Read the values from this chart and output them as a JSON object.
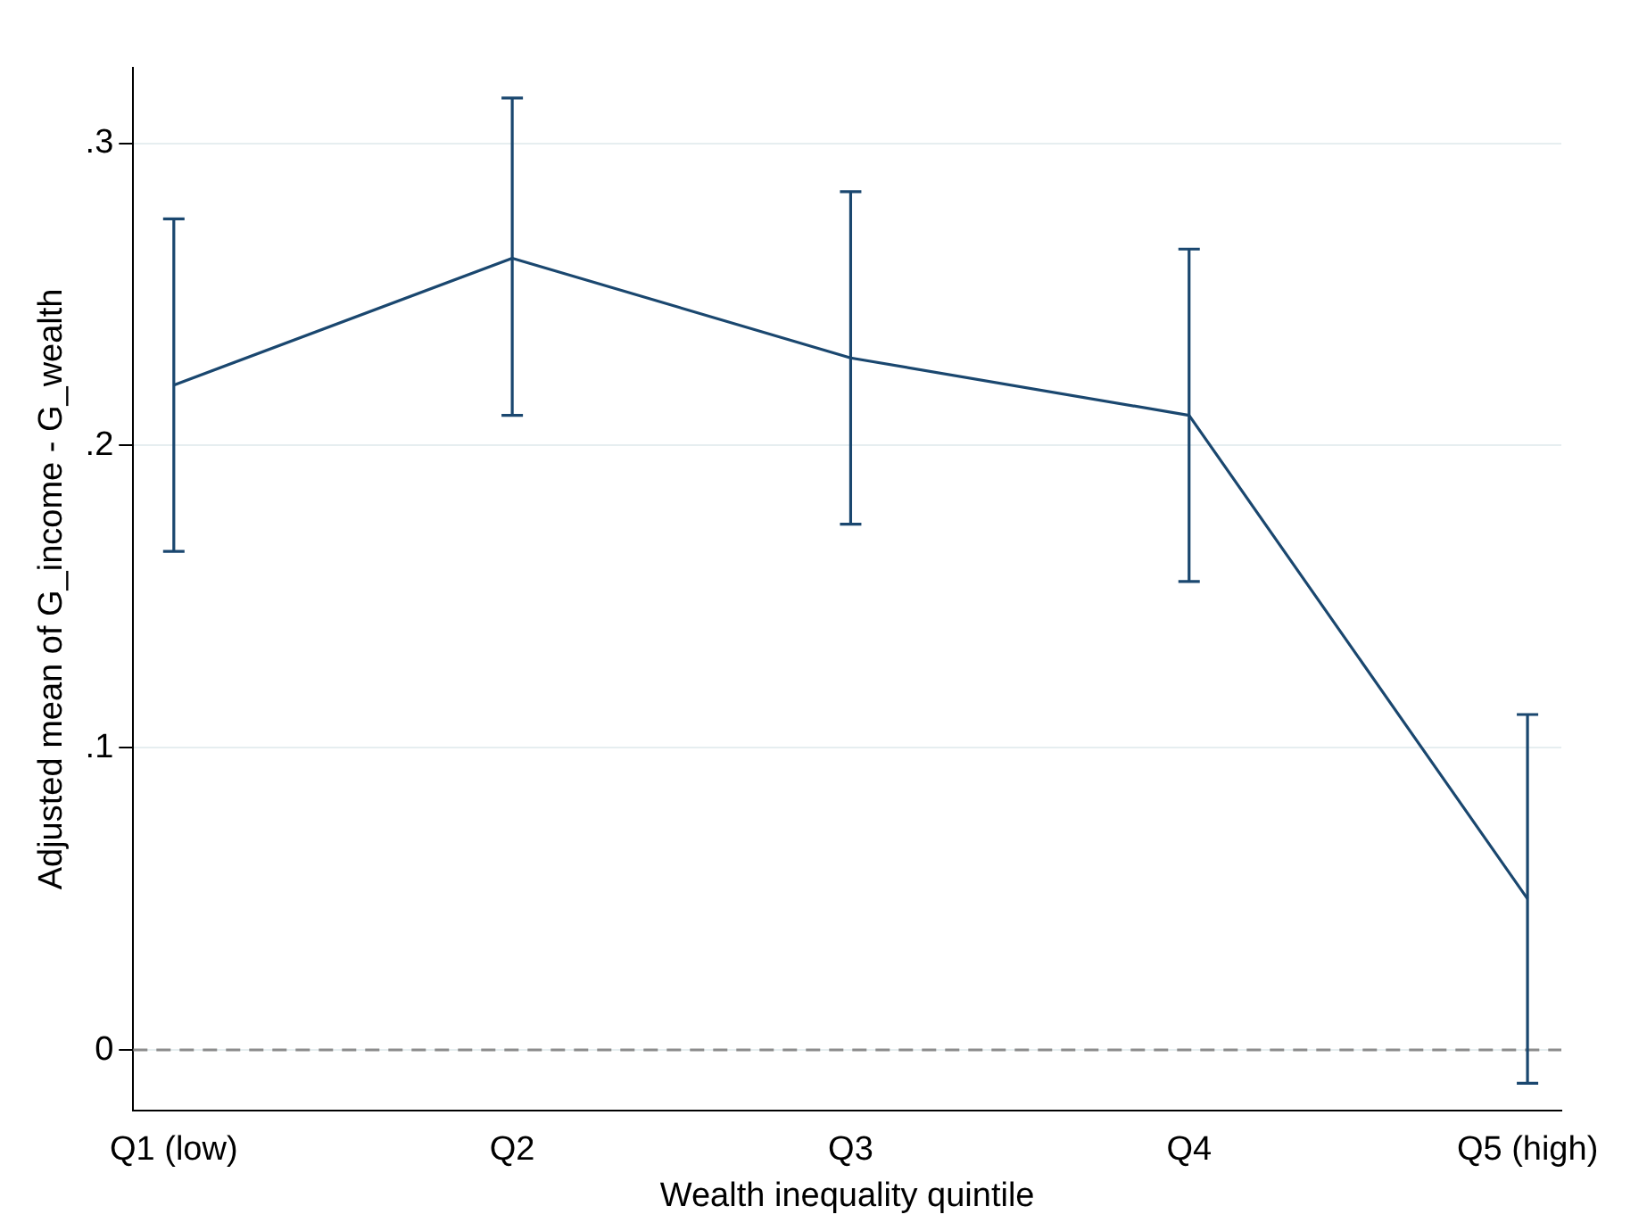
{
  "chart_data": {
    "type": "line",
    "xlabel": "Wealth inequality quintile",
    "ylabel": "Adjusted mean of G_income - G_wealth",
    "categories": [
      "Q1 (low)",
      "Q2",
      "Q3",
      "Q4",
      "Q5 (high)"
    ],
    "series": [
      {
        "color": "#1a476f",
        "values": [
          0.22,
          0.262,
          0.229,
          0.21,
          0.05
        ],
        "errors": [
          [
            0.165,
            0.275
          ],
          [
            0.21,
            0.315
          ],
          [
            0.174,
            0.284
          ],
          [
            0.155,
            0.265
          ],
          [
            -0.011,
            0.111
          ]
        ]
      }
    ],
    "ylim": [
      -0.02,
      0.325
    ],
    "yticks": [
      {
        "value": 0,
        "label": "0"
      },
      {
        "value": 0.1,
        "label": ".1"
      },
      {
        "value": 0.2,
        "label": ".2"
      },
      {
        "value": 0.3,
        "label": ".3"
      }
    ],
    "grid": "y",
    "legend": false,
    "marker": "none",
    "line_style": "solid",
    "ref_lines": [
      {
        "axis": "y",
        "value": 0,
        "color": "#8c8c8c",
        "line_style": "dashed"
      }
    ]
  }
}
